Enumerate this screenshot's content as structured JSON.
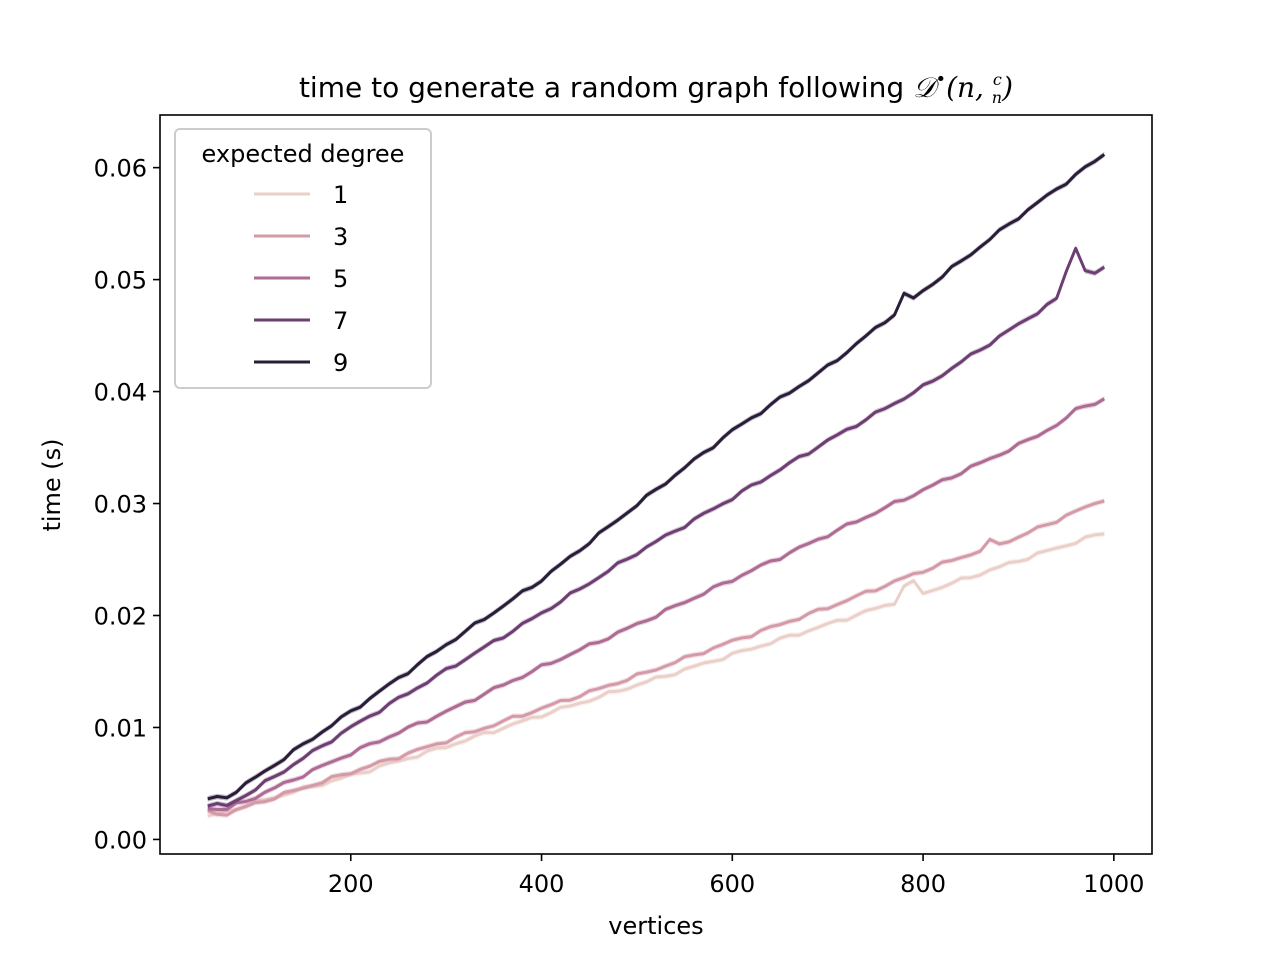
{
  "chart_data": {
    "type": "line",
    "title": {
      "text": "time to generate a random graph following ",
      "math_symbol": "𝒟",
      "math_superscript": "•",
      "math_args": "(n, ",
      "frac_num": "c",
      "frac_den": "n",
      "math_close": ")"
    },
    "xlabel": "vertices",
    "ylabel": "time (s)",
    "xlim": [
      0,
      1040
    ],
    "ylim": [
      -0.0013,
      0.0647
    ],
    "x_ticks": [
      200,
      400,
      600,
      800,
      1000
    ],
    "y_ticks": [
      0.0,
      0.01,
      0.02,
      0.03,
      0.04,
      0.05,
      0.06
    ],
    "y_tick_labels": [
      "0.00",
      "0.01",
      "0.02",
      "0.03",
      "0.04",
      "0.05",
      "0.06"
    ],
    "grid": false,
    "legend": {
      "title": "expected degree",
      "placement": "top-left"
    },
    "x_start": 50,
    "x_end": 990,
    "x_step": 10,
    "series": [
      {
        "name": "1",
        "color": "#ebcfc9",
        "anchors": [
          [
            50,
            0.002
          ],
          [
            100,
            0.0033
          ],
          [
            200,
            0.0057
          ],
          [
            300,
            0.0083
          ],
          [
            400,
            0.0111
          ],
          [
            500,
            0.0138
          ],
          [
            600,
            0.0165
          ],
          [
            700,
            0.0192
          ],
          [
            800,
            0.022
          ],
          [
            900,
            0.0249
          ],
          [
            990,
            0.0274
          ]
        ],
        "bumps": [
          [
            780,
            0.0012
          ],
          [
            790,
            0.0012
          ]
        ]
      },
      {
        "name": "3",
        "color": "#d49aa8",
        "anchors": [
          [
            50,
            0.0024
          ],
          [
            70,
            0.0023
          ],
          [
            100,
            0.0032
          ],
          [
            200,
            0.006
          ],
          [
            300,
            0.0088
          ],
          [
            400,
            0.0117
          ],
          [
            500,
            0.0146
          ],
          [
            600,
            0.0177
          ],
          [
            700,
            0.0207
          ],
          [
            800,
            0.024
          ],
          [
            900,
            0.027
          ],
          [
            990,
            0.0304
          ]
        ],
        "bumps": [
          [
            870,
            0.0005
          ]
        ]
      },
      {
        "name": "5",
        "color": "#ae6b93",
        "anchors": [
          [
            50,
            0.0028
          ],
          [
            70,
            0.0027
          ],
          [
            100,
            0.0038
          ],
          [
            200,
            0.0077
          ],
          [
            300,
            0.0114
          ],
          [
            400,
            0.0154
          ],
          [
            500,
            0.0192
          ],
          [
            600,
            0.0232
          ],
          [
            700,
            0.0272
          ],
          [
            800,
            0.0312
          ],
          [
            900,
            0.0352
          ],
          [
            990,
            0.0393
          ]
        ],
        "bumps": [
          [
            960,
            0.0005
          ],
          [
            970,
            0.0005
          ]
        ]
      },
      {
        "name": "7",
        "color": "#6d3e72",
        "anchors": [
          [
            50,
            0.0031
          ],
          [
            70,
            0.003
          ],
          [
            100,
            0.0045
          ],
          [
            200,
            0.01
          ],
          [
            300,
            0.0151
          ],
          [
            400,
            0.0202
          ],
          [
            500,
            0.0256
          ],
          [
            600,
            0.0305
          ],
          [
            700,
            0.0356
          ],
          [
            800,
            0.0404
          ],
          [
            900,
            0.046
          ],
          [
            990,
            0.051
          ]
        ],
        "bumps": [
          [
            950,
            0.002
          ],
          [
            960,
            0.0035
          ],
          [
            970,
            0.001
          ]
        ]
      },
      {
        "name": "9",
        "color": "#2a1d39",
        "anchors": [
          [
            50,
            0.0036
          ],
          [
            70,
            0.0038
          ],
          [
            100,
            0.0055
          ],
          [
            200,
            0.0114
          ],
          [
            300,
            0.0174
          ],
          [
            400,
            0.0232
          ],
          [
            500,
            0.0299
          ],
          [
            600,
            0.0365
          ],
          [
            700,
            0.0422
          ],
          [
            800,
            0.049
          ],
          [
            900,
            0.0556
          ],
          [
            990,
            0.0612
          ]
        ],
        "bumps": [
          [
            780,
            0.001
          ]
        ]
      }
    ]
  }
}
